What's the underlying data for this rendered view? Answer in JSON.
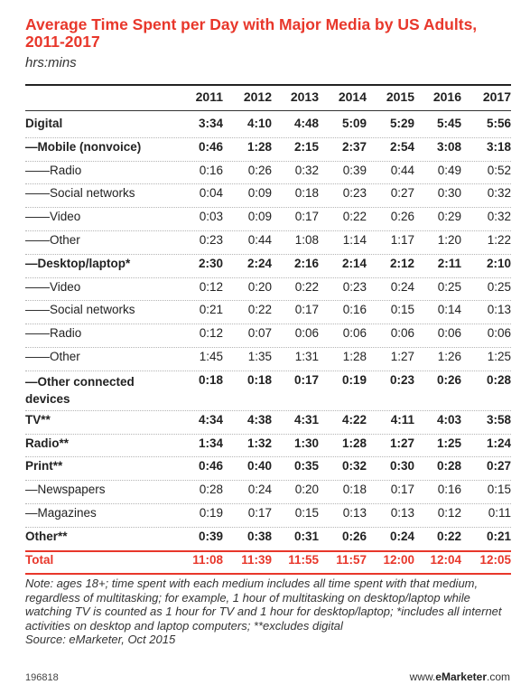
{
  "title": "Average Time Spent per Day with Major Media by US Adults, 2011-2017",
  "subtitle": "hrs:mins",
  "note": "Note: ages 18+; time spent with each medium includes all time spent with that medium, regardless of multitasking; for example, 1 hour of multitasking on desktop/laptop while watching TV is counted as 1 hour for TV and 1 hour for desktop/laptop; *includes all internet activities on desktop and laptop computers; **excludes digital",
  "source": "Source: eMarketer, Oct 2015",
  "chart_id": "196818",
  "brand": {
    "prefix": "www.",
    "name": "eMarketer",
    "suffix": ".com"
  },
  "chart_data": {
    "type": "table",
    "title": "Average Time Spent per Day with Major Media by US Adults, 2011-2017",
    "units": "hrs:mins",
    "columns": [
      "2011",
      "2012",
      "2013",
      "2014",
      "2015",
      "2016",
      "2017"
    ],
    "rows": [
      {
        "label": "Digital",
        "style": "bold",
        "values": [
          "3:34",
          "4:10",
          "4:48",
          "5:09",
          "5:29",
          "5:45",
          "5:56"
        ]
      },
      {
        "label": "—Mobile (nonvoice)",
        "style": "bold",
        "values": [
          "0:46",
          "1:28",
          "2:15",
          "2:37",
          "2:54",
          "3:08",
          "3:18"
        ]
      },
      {
        "label": "——Radio",
        "style": "normal",
        "values": [
          "0:16",
          "0:26",
          "0:32",
          "0:39",
          "0:44",
          "0:49",
          "0:52"
        ]
      },
      {
        "label": "——Social networks",
        "style": "normal",
        "values": [
          "0:04",
          "0:09",
          "0:18",
          "0:23",
          "0:27",
          "0:30",
          "0:32"
        ]
      },
      {
        "label": "——Video",
        "style": "normal",
        "values": [
          "0:03",
          "0:09",
          "0:17",
          "0:22",
          "0:26",
          "0:29",
          "0:32"
        ]
      },
      {
        "label": "——Other",
        "style": "normal",
        "values": [
          "0:23",
          "0:44",
          "1:08",
          "1:14",
          "1:17",
          "1:20",
          "1:22"
        ]
      },
      {
        "label": "—Desktop/laptop*",
        "style": "bold",
        "values": [
          "2:30",
          "2:24",
          "2:16",
          "2:14",
          "2:12",
          "2:11",
          "2:10"
        ]
      },
      {
        "label": "——Video",
        "style": "normal",
        "values": [
          "0:12",
          "0:20",
          "0:22",
          "0:23",
          "0:24",
          "0:25",
          "0:25"
        ]
      },
      {
        "label": "——Social networks",
        "style": "normal",
        "values": [
          "0:21",
          "0:22",
          "0:17",
          "0:16",
          "0:15",
          "0:14",
          "0:13"
        ]
      },
      {
        "label": "——Radio",
        "style": "normal",
        "values": [
          "0:12",
          "0:07",
          "0:06",
          "0:06",
          "0:06",
          "0:06",
          "0:06"
        ]
      },
      {
        "label": "——Other",
        "style": "normal",
        "values": [
          "1:45",
          "1:35",
          "1:31",
          "1:28",
          "1:27",
          "1:26",
          "1:25"
        ]
      },
      {
        "label": "—Other connected",
        "label2": "devices",
        "style": "bold",
        "values": [
          "0:18",
          "0:18",
          "0:17",
          "0:19",
          "0:23",
          "0:26",
          "0:28"
        ]
      },
      {
        "label": "TV**",
        "style": "bold",
        "values": [
          "4:34",
          "4:38",
          "4:31",
          "4:22",
          "4:11",
          "4:03",
          "3:58"
        ]
      },
      {
        "label": "Radio**",
        "style": "bold",
        "values": [
          "1:34",
          "1:32",
          "1:30",
          "1:28",
          "1:27",
          "1:25",
          "1:24"
        ]
      },
      {
        "label": "Print**",
        "style": "bold",
        "values": [
          "0:46",
          "0:40",
          "0:35",
          "0:32",
          "0:30",
          "0:28",
          "0:27"
        ]
      },
      {
        "label": "—Newspapers",
        "style": "normal",
        "values": [
          "0:28",
          "0:24",
          "0:20",
          "0:18",
          "0:17",
          "0:16",
          "0:15"
        ]
      },
      {
        "label": "—Magazines",
        "style": "normal",
        "values": [
          "0:19",
          "0:17",
          "0:15",
          "0:13",
          "0:13",
          "0:12",
          "0:11"
        ]
      },
      {
        "label": "Other**",
        "style": "bold",
        "values": [
          "0:39",
          "0:38",
          "0:31",
          "0:26",
          "0:24",
          "0:22",
          "0:21"
        ]
      },
      {
        "label": "Total",
        "style": "total",
        "values": [
          "11:08",
          "11:39",
          "11:55",
          "11:57",
          "12:00",
          "12:04",
          "12:05"
        ]
      }
    ]
  }
}
